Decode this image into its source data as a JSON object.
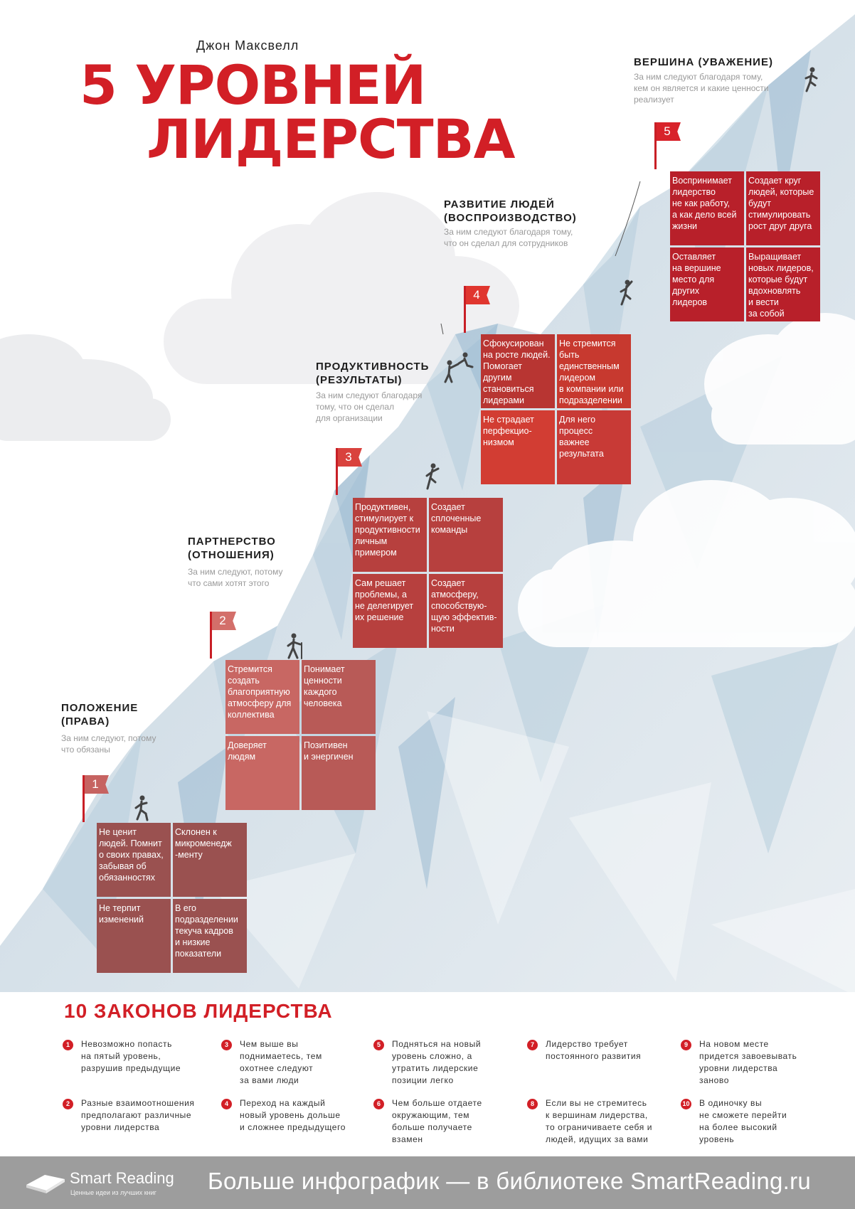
{
  "author": "Джон Максвелл",
  "title": {
    "line1": "5 УРОВНЕЙ",
    "line2": "ЛИДЕРСТВА"
  },
  "colors": {
    "accent": "#d21f26",
    "footer": "#9d9d9d",
    "ice": "#cfdbe4",
    "ice_dark": "#9fbcd0"
  },
  "levels": [
    {
      "number": "1",
      "title": "ПОЛОЖЕНИЕ\n(ПРАВА)",
      "subtitle": "За ним следуют, потому\nчто обязаны",
      "color": "#9a5150",
      "cells": [
        "Не ценит\nлюдей. Помнит\nо своих правах,\nзабывая об\nобязанностях",
        "Склонен к\nмикроменедж\n-менту",
        "Не терпит\nизменений",
        "В его\nподразделении\nтекуча кадров\nи низкие\nпоказатели"
      ]
    },
    {
      "number": "2",
      "title": "ПАРТНЕРСТВО\n(ОТНОШЕНИЯ)",
      "subtitle": "За ним следуют, потому\nчто сами хотят этого",
      "color": "#bd5f5b",
      "cells": [
        "Стремится\nсоздать\nблагоприятную\nатмосферу для\nколлектива",
        "Понимает\nценности\nкаждого\nчеловека",
        "Доверяет\nлюдям",
        "Позитивен\nи энергичен"
      ]
    },
    {
      "number": "3",
      "title": "ПРОДУКТИВНОСТЬ\n(РЕЗУЛЬТАТЫ)",
      "subtitle": "За ним следуют благодаря\nтому, что он сделал\nдля организации",
      "color": "#b7403e",
      "cells": [
        "Продуктивен,\nстимулирует к\nпродуктивности\nличным\nпримером",
        "Создает\nсплоченные\nкоманды",
        "Сам решает\nпроблемы, а\nне делегирует\nих решение",
        "Создает\nатмосферу,\nспособствую-\nщую эффектив-\nности"
      ]
    },
    {
      "number": "4",
      "title": "РАЗВИТИЕ ЛЮДЕЙ\n(ВОСПРОИЗВОДСТВО)",
      "subtitle": "За ним следуют благодаря тому,\nчто он сделал для сотрудников",
      "color": "#c83a36",
      "cells": [
        "Сфокусирован\nна росте людей.\nПомогает\nдругим\nстановиться\nлидерами",
        "Не стремится\nбыть\nединственным\nлидером\nв компании или\nподразделении",
        "Не страдает\nперфекцио-\nнизмом",
        "Для него\nпроцесс\nважнее\nрезультата"
      ]
    },
    {
      "number": "5",
      "title": "ВЕРШИНА (УВАЖЕНИЕ)",
      "subtitle": "За ним следуют благодаря тому,\nкем он является и какие ценности\nреализует",
      "color": "#b8202a",
      "cells": [
        "Воспринимает\nлидерство\nне как работу,\nа как дело всей\nжизни",
        "Создает круг\nлюдей, которые\nбудут\nстимулировать\nрост друг друга",
        "Оставляет\nна вершине\nместо для\nдругих\nлидеров",
        "Выращивает\nновых лидеров,\nкоторые будут\nвдохновлять\nи вести\nза собой"
      ]
    }
  ],
  "laws_title": "10 ЗАКОНОВ ЛИДЕРСТВА",
  "laws": [
    {
      "num": "1",
      "text": "Невозможно попасть\nна пятый уровень,\nразрушив предыдущие"
    },
    {
      "num": "2",
      "text": "Разные взаимоотношения\nпредполагают различные\nуровни лидерства"
    },
    {
      "num": "3",
      "text": "Чем выше вы\nподнимаетесь, тем\nохотнее следуют\nза вами люди"
    },
    {
      "num": "4",
      "text": "Переход на каждый\nновый уровень дольше\nи сложнее предыдущего"
    },
    {
      "num": "5",
      "text": "Подняться на новый\nуровень сложно, а\nутратить лидерские\nпозиции легко"
    },
    {
      "num": "6",
      "text": "Чем больше отдаете\nокружающим, тем\nбольше получаете\nвзамен"
    },
    {
      "num": "7",
      "text": "Лидерство требует\nпостоянного развития"
    },
    {
      "num": "8",
      "text": "Если вы не стремитесь\nк вершинам лидерства,\nто ограничиваете себя и\nлюдей, идущих за вами"
    },
    {
      "num": "9",
      "text": "На новом месте\nпридется завоевывать\nуровни лидерства\nзаново"
    },
    {
      "num": "10",
      "text": "В одиночку вы\nне сможете перейти\nна более высокий\nуровень"
    }
  ],
  "footer": {
    "brand": "Smart Reading",
    "tagline": "Ценные идеи из лучших книг",
    "cta": "Больше инфографик — в библиотеке SmartReading.ru"
  }
}
